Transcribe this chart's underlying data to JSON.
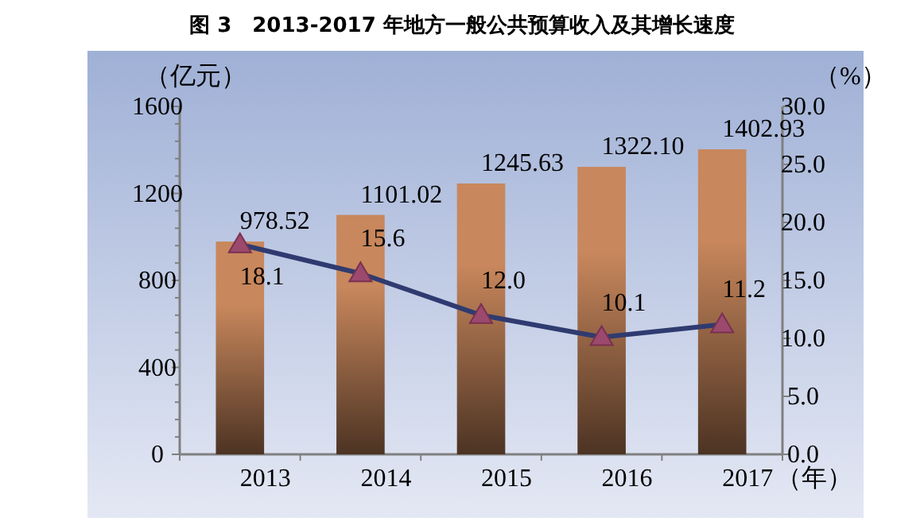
{
  "chart_data": {
    "type": "bar",
    "title": "图 3　2013-2017 年地方一般公共预算收入及其增长速度",
    "categories": [
      "2013",
      "2014",
      "2015",
      "2016",
      "2017"
    ],
    "xlabel": "（年）",
    "ylabel": "（亿元）",
    "y2label": "（%）",
    "ylim": [
      0,
      1600
    ],
    "yticks": [
      0,
      400,
      800,
      1200,
      1600
    ],
    "y2lim": [
      0,
      30
    ],
    "y2ticks": [
      {
        "value": 0,
        "label": "0.0"
      },
      {
        "value": 5,
        "label": "5.0"
      },
      {
        "value": 10,
        "label": "10.0"
      },
      {
        "value": 15,
        "label": "15.0"
      },
      {
        "value": 20,
        "label": "20.0"
      },
      {
        "value": 25,
        "label": "25.0"
      },
      {
        "value": 30,
        "label": "30.0"
      }
    ],
    "grid": false,
    "series": [
      {
        "color": "#c8875c",
        "values": [
          978.52,
          1101.02,
          1245.63,
          1322.1,
          1402.93
        ],
        "value_labels": [
          "978.52",
          "1101.02",
          "1245.63",
          "1322.10",
          "1402.93"
        ]
      },
      {
        "type": "line",
        "axis": "y2",
        "color": "#2f3b70",
        "marker": "triangle",
        "line_style": "solid",
        "values": [
          18.1,
          15.6,
          12.0,
          10.1,
          11.2
        ],
        "value_labels": [
          "18.1",
          "15.6",
          "12.0",
          "10.1",
          "11.2"
        ]
      }
    ]
  }
}
